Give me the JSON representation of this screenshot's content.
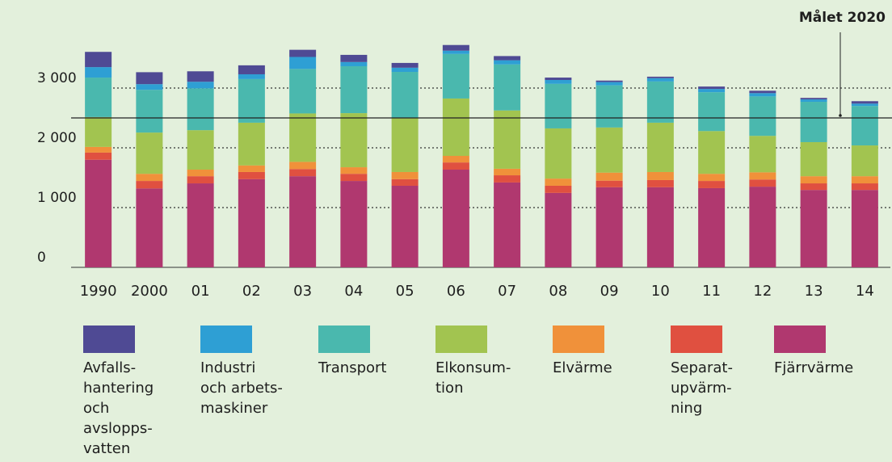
{
  "chart_data": {
    "type": "stacked_bar",
    "categories": [
      "1990",
      "2000",
      "01",
      "02",
      "03",
      "04",
      "05",
      "06",
      "07",
      "08",
      "09",
      "10",
      "11",
      "12",
      "13",
      "14"
    ],
    "series": [
      {
        "name": "Avfalls-\nhantering\noch\navslopps-\nvatten",
        "color": "#4f4a94",
        "values": [
          255,
          200,
          175,
          150,
          120,
          120,
          80,
          95,
          70,
          40,
          25,
          25,
          40,
          40,
          25,
          40
        ]
      },
      {
        "name": "Industri\noch arbets-\nmaskiner",
        "color": "#2e9fd4",
        "values": [
          175,
          95,
          110,
          80,
          200,
          70,
          70,
          55,
          70,
          65,
          55,
          55,
          55,
          55,
          40,
          40
        ]
      },
      {
        "name": "Transport",
        "color": "#4ab8ae",
        "values": [
          660,
          715,
          700,
          730,
          745,
          785,
          770,
          745,
          770,
          745,
          705,
          690,
          650,
          660,
          675,
          660
        ]
      },
      {
        "name": "Elkonsum-\ntion",
        "color": "#a2c450",
        "values": [
          500,
          690,
          660,
          715,
          810,
          905,
          905,
          960,
          975,
          840,
          755,
          825,
          715,
          610,
          570,
          515
        ]
      },
      {
        "name": "Elvärme",
        "color": "#f0913a",
        "values": [
          95,
          120,
          110,
          110,
          120,
          110,
          120,
          110,
          110,
          120,
          135,
          135,
          120,
          120,
          120,
          120
        ]
      },
      {
        "name": "Separat-\nupvärm-\nning",
        "color": "#e05040",
        "values": [
          120,
          125,
          120,
          120,
          120,
          120,
          110,
          120,
          120,
          120,
          110,
          120,
          120,
          120,
          110,
          110
        ]
      },
      {
        "name": "Fjärrvärme",
        "color": "#b0386f",
        "values": [
          1800,
          1320,
          1405,
          1475,
          1525,
          1445,
          1365,
          1635,
          1420,
          1245,
          1340,
          1340,
          1325,
          1350,
          1295,
          1295
        ]
      }
    ],
    "ylim": [
      0,
      4000
    ],
    "yticks": [
      0,
      {
        "value": 1000,
        "label": "1 000"
      },
      {
        "value": 2000,
        "label": "2 000"
      },
      {
        "value": 3000,
        "label": "3 000"
      }
    ],
    "grid": true,
    "target": {
      "value": 2500,
      "label": "Målet 2020"
    }
  }
}
